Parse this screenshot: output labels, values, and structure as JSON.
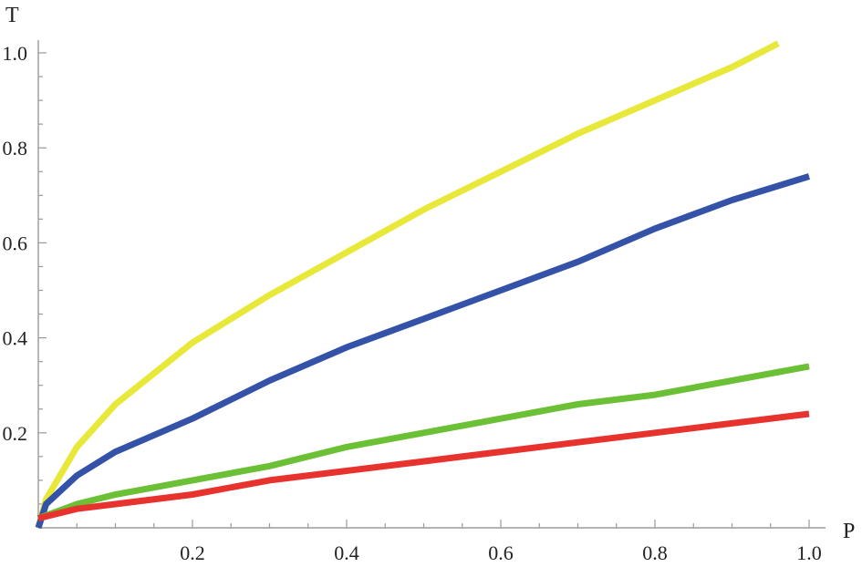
{
  "chart_data": {
    "type": "line",
    "xlabel": "P",
    "ylabel": "T",
    "xlim": [
      0,
      1.0
    ],
    "ylim": [
      0,
      1.02
    ],
    "x_ticks": [
      "0.2",
      "0.4",
      "0.6",
      "0.8",
      "1.0"
    ],
    "y_ticks": [
      "0.2",
      "0.4",
      "0.6",
      "0.8",
      "1.0"
    ],
    "grid": false,
    "series": [
      {
        "color": "#e8e83a",
        "x": [
          0,
          0.01,
          0.05,
          0.1,
          0.2,
          0.3,
          0.4,
          0.5,
          0.6,
          0.7,
          0.8,
          0.9,
          0.96
        ],
        "y": [
          0,
          0.06,
          0.17,
          0.26,
          0.39,
          0.49,
          0.58,
          0.67,
          0.75,
          0.83,
          0.9,
          0.97,
          1.02
        ]
      },
      {
        "color": "#3452a8",
        "x": [
          0,
          0.01,
          0.05,
          0.1,
          0.2,
          0.3,
          0.4,
          0.5,
          0.6,
          0.7,
          0.8,
          0.9,
          1.0
        ],
        "y": [
          0,
          0.05,
          0.11,
          0.16,
          0.23,
          0.31,
          0.38,
          0.44,
          0.5,
          0.56,
          0.63,
          0.69,
          0.74
        ]
      },
      {
        "color": "#6cc036",
        "x": [
          0,
          0.05,
          0.1,
          0.2,
          0.3,
          0.4,
          0.5,
          0.6,
          0.7,
          0.8,
          0.9,
          1.0
        ],
        "y": [
          0.02,
          0.05,
          0.07,
          0.1,
          0.13,
          0.17,
          0.2,
          0.23,
          0.26,
          0.28,
          0.31,
          0.34
        ]
      },
      {
        "color": "#e8322e",
        "x": [
          0,
          0.05,
          0.1,
          0.2,
          0.3,
          0.4,
          0.5,
          0.6,
          0.7,
          0.8,
          0.9,
          1.0
        ],
        "y": [
          0.02,
          0.04,
          0.05,
          0.07,
          0.1,
          0.12,
          0.14,
          0.16,
          0.18,
          0.2,
          0.22,
          0.24
        ]
      }
    ]
  }
}
